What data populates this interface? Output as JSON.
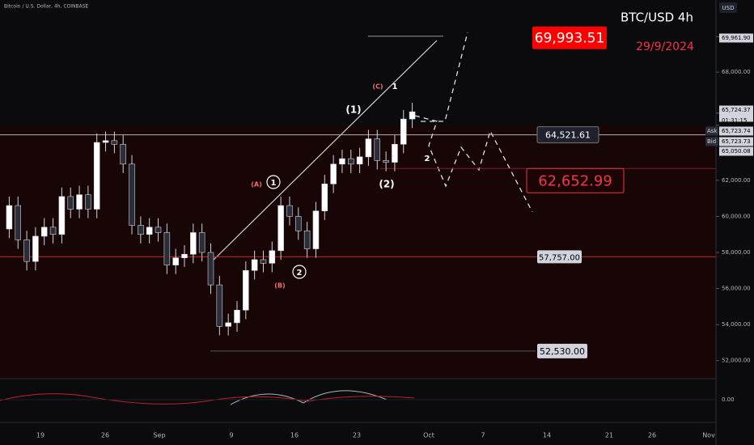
{
  "chart_data": {
    "type": "candlestick",
    "title": "Bitcoin / U.S. Dollar, 4h, COINBASE",
    "symbol": "BTC/USD 4h",
    "date_note": "29/9/2024",
    "currency": "USD",
    "x_labels": [
      "19",
      "26",
      "Sep",
      "9",
      "16",
      "23",
      "Oct",
      "7",
      "14",
      "21",
      "26",
      "Nov"
    ],
    "open": [
      59300,
      60600,
      58700,
      57500,
      58900,
      59400,
      59000,
      61100,
      60400,
      61200,
      60400,
      64100,
      64200,
      64000,
      62900,
      59500,
      59000,
      59400,
      59100,
      57300,
      57700,
      57900,
      59100,
      58000,
      56200,
      53900,
      54100,
      54800,
      57000,
      57600,
      57400,
      58100,
      60600,
      60000,
      59200,
      58200,
      60300,
      61800,
      62900,
      63200,
      62900,
      63300,
      64300,
      63100,
      63000,
      64000,
      65400
    ],
    "high": [
      61100,
      61100,
      59200,
      59400,
      59900,
      59900,
      61600,
      61600,
      61700,
      61700,
      64600,
      64700,
      64700,
      64500,
      63400,
      60000,
      59900,
      59900,
      59600,
      58200,
      58400,
      59600,
      59600,
      58500,
      56700,
      54600,
      55300,
      57500,
      58100,
      58100,
      58600,
      61100,
      61100,
      60500,
      59700,
      60800,
      62300,
      63400,
      63700,
      63700,
      63800,
      64800,
      64800,
      63600,
      64500,
      65900,
      66300
    ],
    "low": [
      58800,
      58200,
      57000,
      57000,
      58400,
      58500,
      58500,
      59900,
      59900,
      59900,
      59900,
      63600,
      63500,
      62400,
      59000,
      58500,
      58500,
      58600,
      56800,
      56800,
      57200,
      57400,
      57500,
      55700,
      53400,
      53400,
      53600,
      54300,
      56500,
      56900,
      56900,
      57600,
      59500,
      58700,
      57700,
      57700,
      59800,
      61300,
      62400,
      62400,
      62400,
      62800,
      62600,
      62500,
      62500,
      63500,
      64900
    ],
    "close": [
      60600,
      58700,
      57500,
      58900,
      59400,
      59000,
      61100,
      60400,
      61200,
      60400,
      64100,
      64200,
      64000,
      62900,
      59500,
      59000,
      59400,
      59100,
      57300,
      57700,
      57900,
      59100,
      58000,
      56200,
      53900,
      54100,
      54800,
      57000,
      57600,
      57400,
      58100,
      60600,
      60000,
      59200,
      58200,
      60300,
      61800,
      62900,
      63200,
      62900,
      63300,
      64300,
      63100,
      63000,
      64000,
      65400,
      65800
    ],
    "ylim": [
      51000,
      72000
    ],
    "yticks": [
      {
        "value": 68000,
        "label": "68,000.00"
      },
      {
        "value": 62000,
        "label": "62,000.00"
      },
      {
        "value": 60000,
        "label": "60,000.00"
      },
      {
        "value": 58000,
        "label": "58,000.00"
      },
      {
        "value": 56000,
        "label": "56,000.00"
      },
      {
        "value": 54000,
        "label": "54,000.00"
      },
      {
        "value": 52000,
        "label": "52,000.00"
      }
    ],
    "price_tags": [
      {
        "value": 69961.9,
        "label": "69,961.90"
      },
      {
        "value": 65724.37,
        "label": "65,724.37",
        "note": "01:31:15"
      },
      {
        "value": 65723.74,
        "label": "65,723.74",
        "note": "Ask"
      },
      {
        "value": 65723.73,
        "label": "65,723.73",
        "note": "Bid"
      },
      {
        "value": 65050.08,
        "label": "65,050.08"
      }
    ],
    "price_lines": [
      {
        "value": 69993.51,
        "label": "69,993.51"
      },
      {
        "value": 64521.61,
        "label": "64,521.61"
      },
      {
        "value": 62652.99,
        "label": "62,652.99"
      },
      {
        "value": 57757,
        "label": "57,757.00"
      },
      {
        "value": 52530,
        "label": "52,530.00"
      }
    ],
    "osc_ticks": [
      {
        "value": 0,
        "label": "0.00"
      }
    ],
    "wave_labels": [
      "(1)",
      "(2)",
      "1",
      "2",
      "(A)",
      "(B)",
      "(C)",
      "1",
      "2"
    ]
  }
}
